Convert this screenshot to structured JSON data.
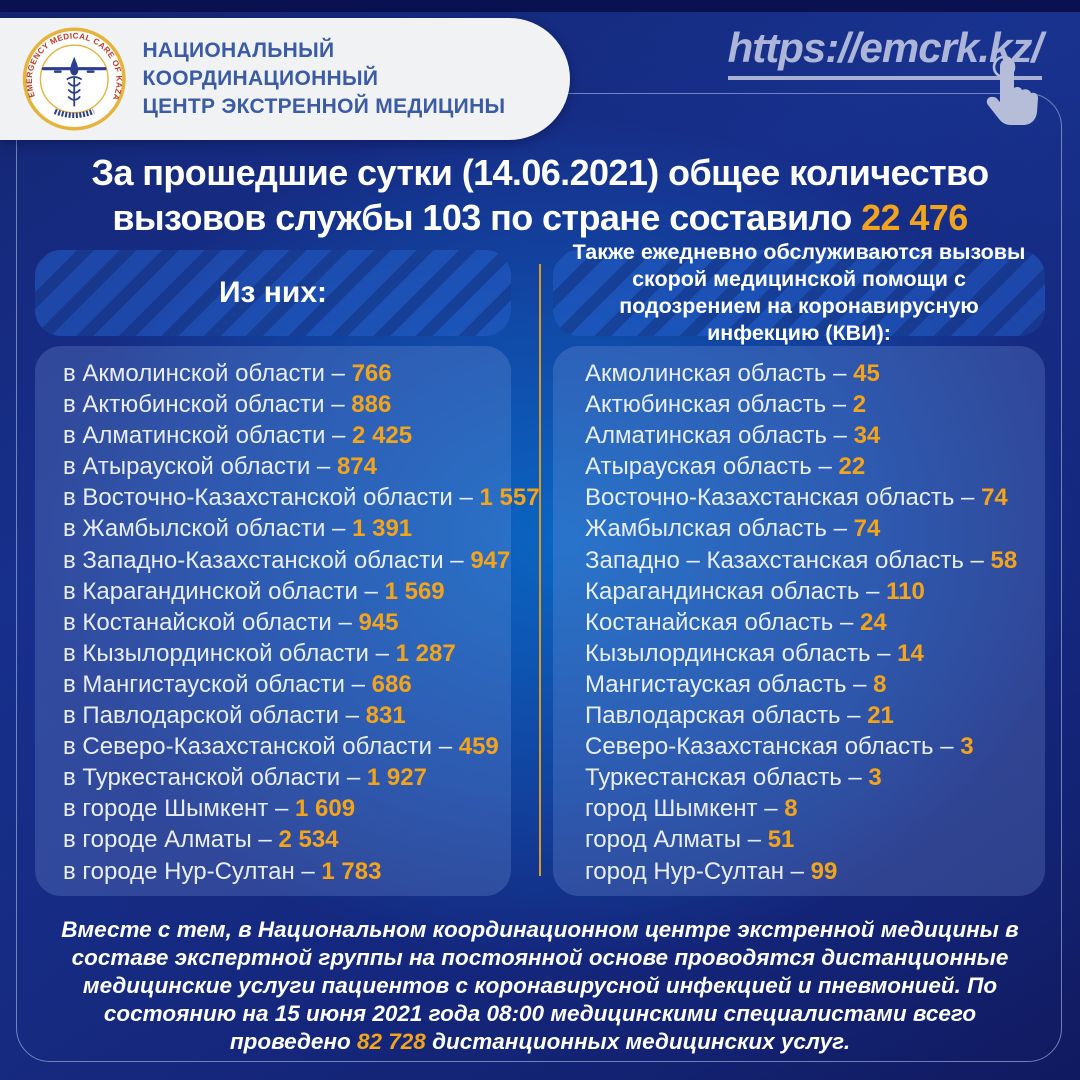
{
  "header": {
    "org_name_line1": "НАЦИОНАЛЬНЫЙ КООРДИНАЦИОННЫЙ",
    "org_name_line2": "ЦЕНТР ЭКСТРЕННОЙ МЕДИЦИНЫ",
    "logo_ring_text": "EMERGENCY MEDICAL CARE OF KAZAKHSTAN",
    "url": "https://emcrk.kz/"
  },
  "title": {
    "text_before": "За прошедшие сутки (14.06.2021) общее количество вызовов службы 103 по стране составило",
    "highlight": "22 476"
  },
  "left_panel": {
    "header": "Из них:",
    "items": [
      {
        "label": "в Акмолинской области –",
        "value": "766"
      },
      {
        "label": "в Актюбинской области –",
        "value": "886"
      },
      {
        "label": "в Алматинской области –",
        "value": "2 425"
      },
      {
        "label": "в Атырауской области –",
        "value": "874"
      },
      {
        "label": "в Восточно-Казахстанской области –",
        "value": "1 557"
      },
      {
        "label": "в Жамбылской области –",
        "value": "1 391"
      },
      {
        "label": "в Западно-Казахстанской области –",
        "value": "947"
      },
      {
        "label": "в Карагандинской области –",
        "value": "1 569"
      },
      {
        "label": "в Костанайской области –",
        "value": "945"
      },
      {
        "label": "в Кызылординской области –",
        "value": "1 287"
      },
      {
        "label": "в Мангистауской области –",
        "value": "686"
      },
      {
        "label": "в Павлодарской области –",
        "value": "831"
      },
      {
        "label": "в Северо-Казахстанской области –",
        "value": "459"
      },
      {
        "label": "в Туркестанской области –",
        "value": "1 927"
      },
      {
        "label": "в городе Шымкент –",
        "value": "1 609"
      },
      {
        "label": "в городе Алматы –",
        "value": "2 534"
      },
      {
        "label": "в городе Нур-Султан –",
        "value": "1 783"
      }
    ]
  },
  "right_panel": {
    "header": "Также ежедневно обслуживаются вызовы скорой медицинской помощи с подозрением на коронавирусную инфекцию (КВИ):",
    "items": [
      {
        "label": "Акмолинская область –",
        "value": "45"
      },
      {
        "label": "Актюбинская область –",
        "value": "2"
      },
      {
        "label": "Алматинская область –",
        "value": "34"
      },
      {
        "label": "Атырауская область –",
        "value": "22"
      },
      {
        "label": "Восточно-Казахстанская область –",
        "value": "74"
      },
      {
        "label": "Жамбылская область –",
        "value": "74"
      },
      {
        "label": "Западно – Казахстанская область –",
        "value": "58"
      },
      {
        "label": "Карагандинская область –",
        "value": "110"
      },
      {
        "label": "Костанайская область –",
        "value": "24"
      },
      {
        "label": "Кызылординская область –",
        "value": "14"
      },
      {
        "label": "Мангистауская область –",
        "value": "8"
      },
      {
        "label": "Павлодарская область –",
        "value": "21"
      },
      {
        "label": "Северо-Казахстанская область –",
        "value": "3"
      },
      {
        "label": "Туркестанская область –",
        "value": "3"
      },
      {
        "label": "город Шымкент –",
        "value": "8"
      },
      {
        "label": "город Алматы –",
        "value": "51"
      },
      {
        "label": "город Нур-Султан –",
        "value": "99"
      }
    ]
  },
  "footer": {
    "text_before": "Вместе с тем, в Национальном координационном центре экстренной медицины в составе экспертной группы на постоянной основе проводятся дистанционные медицинские услуги пациентов с коронавирусной инфекцией и пневмонией. По состоянию на 15 июня 2021 года 08:00 медицинскими специалистами всего проведено",
    "highlight": "82 728",
    "text_after": "дистанционных медицинских услуг."
  },
  "icons": {
    "logo": "emergency-medical-emblem",
    "tap_hand": "tap-hand"
  },
  "colors": {
    "accent_orange": "#F2A41C",
    "brand_blue": "#3B5BA6",
    "link_blue": "#ADB6D8",
    "logo_gold": "#E6B33C",
    "logo_red": "#C0392B",
    "divider_orange": "#D89A22",
    "background_navy": "#141F6B",
    "background_glow": "#0A68C6"
  }
}
